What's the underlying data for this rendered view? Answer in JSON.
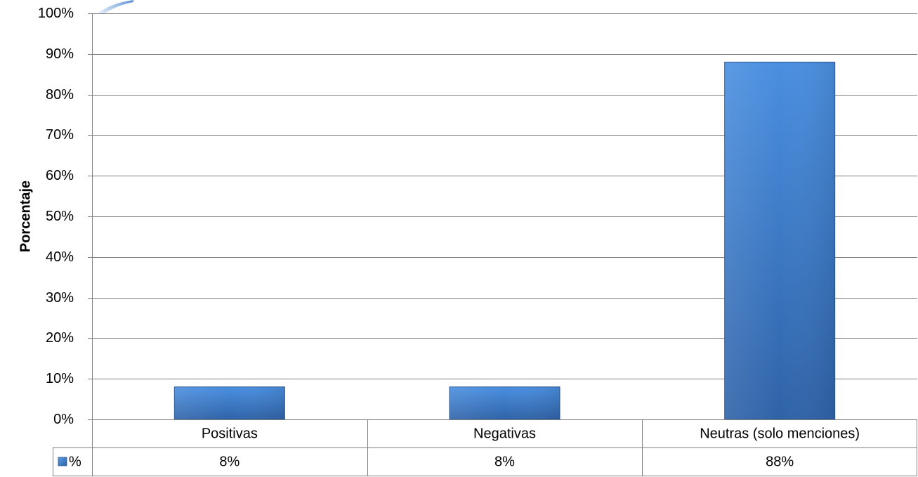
{
  "chart_data": {
    "type": "bar",
    "categories": [
      "Positivas",
      "Negativas",
      "Neutras (solo menciones)"
    ],
    "series": [
      {
        "name": "%",
        "values": [
          8,
          8,
          88
        ],
        "value_labels": [
          "8%",
          "8%",
          "88%"
        ],
        "color": "#3A78C4"
      }
    ],
    "ylabel": "Porcentaje",
    "xlabel": "",
    "ylim": [
      0,
      100
    ],
    "yticks": [
      "0%",
      "10%",
      "20%",
      "30%",
      "40%",
      "50%",
      "60%",
      "70%",
      "80%",
      "90%",
      "100%"
    ],
    "grid": true,
    "legend": "data-table",
    "data_table": true
  }
}
